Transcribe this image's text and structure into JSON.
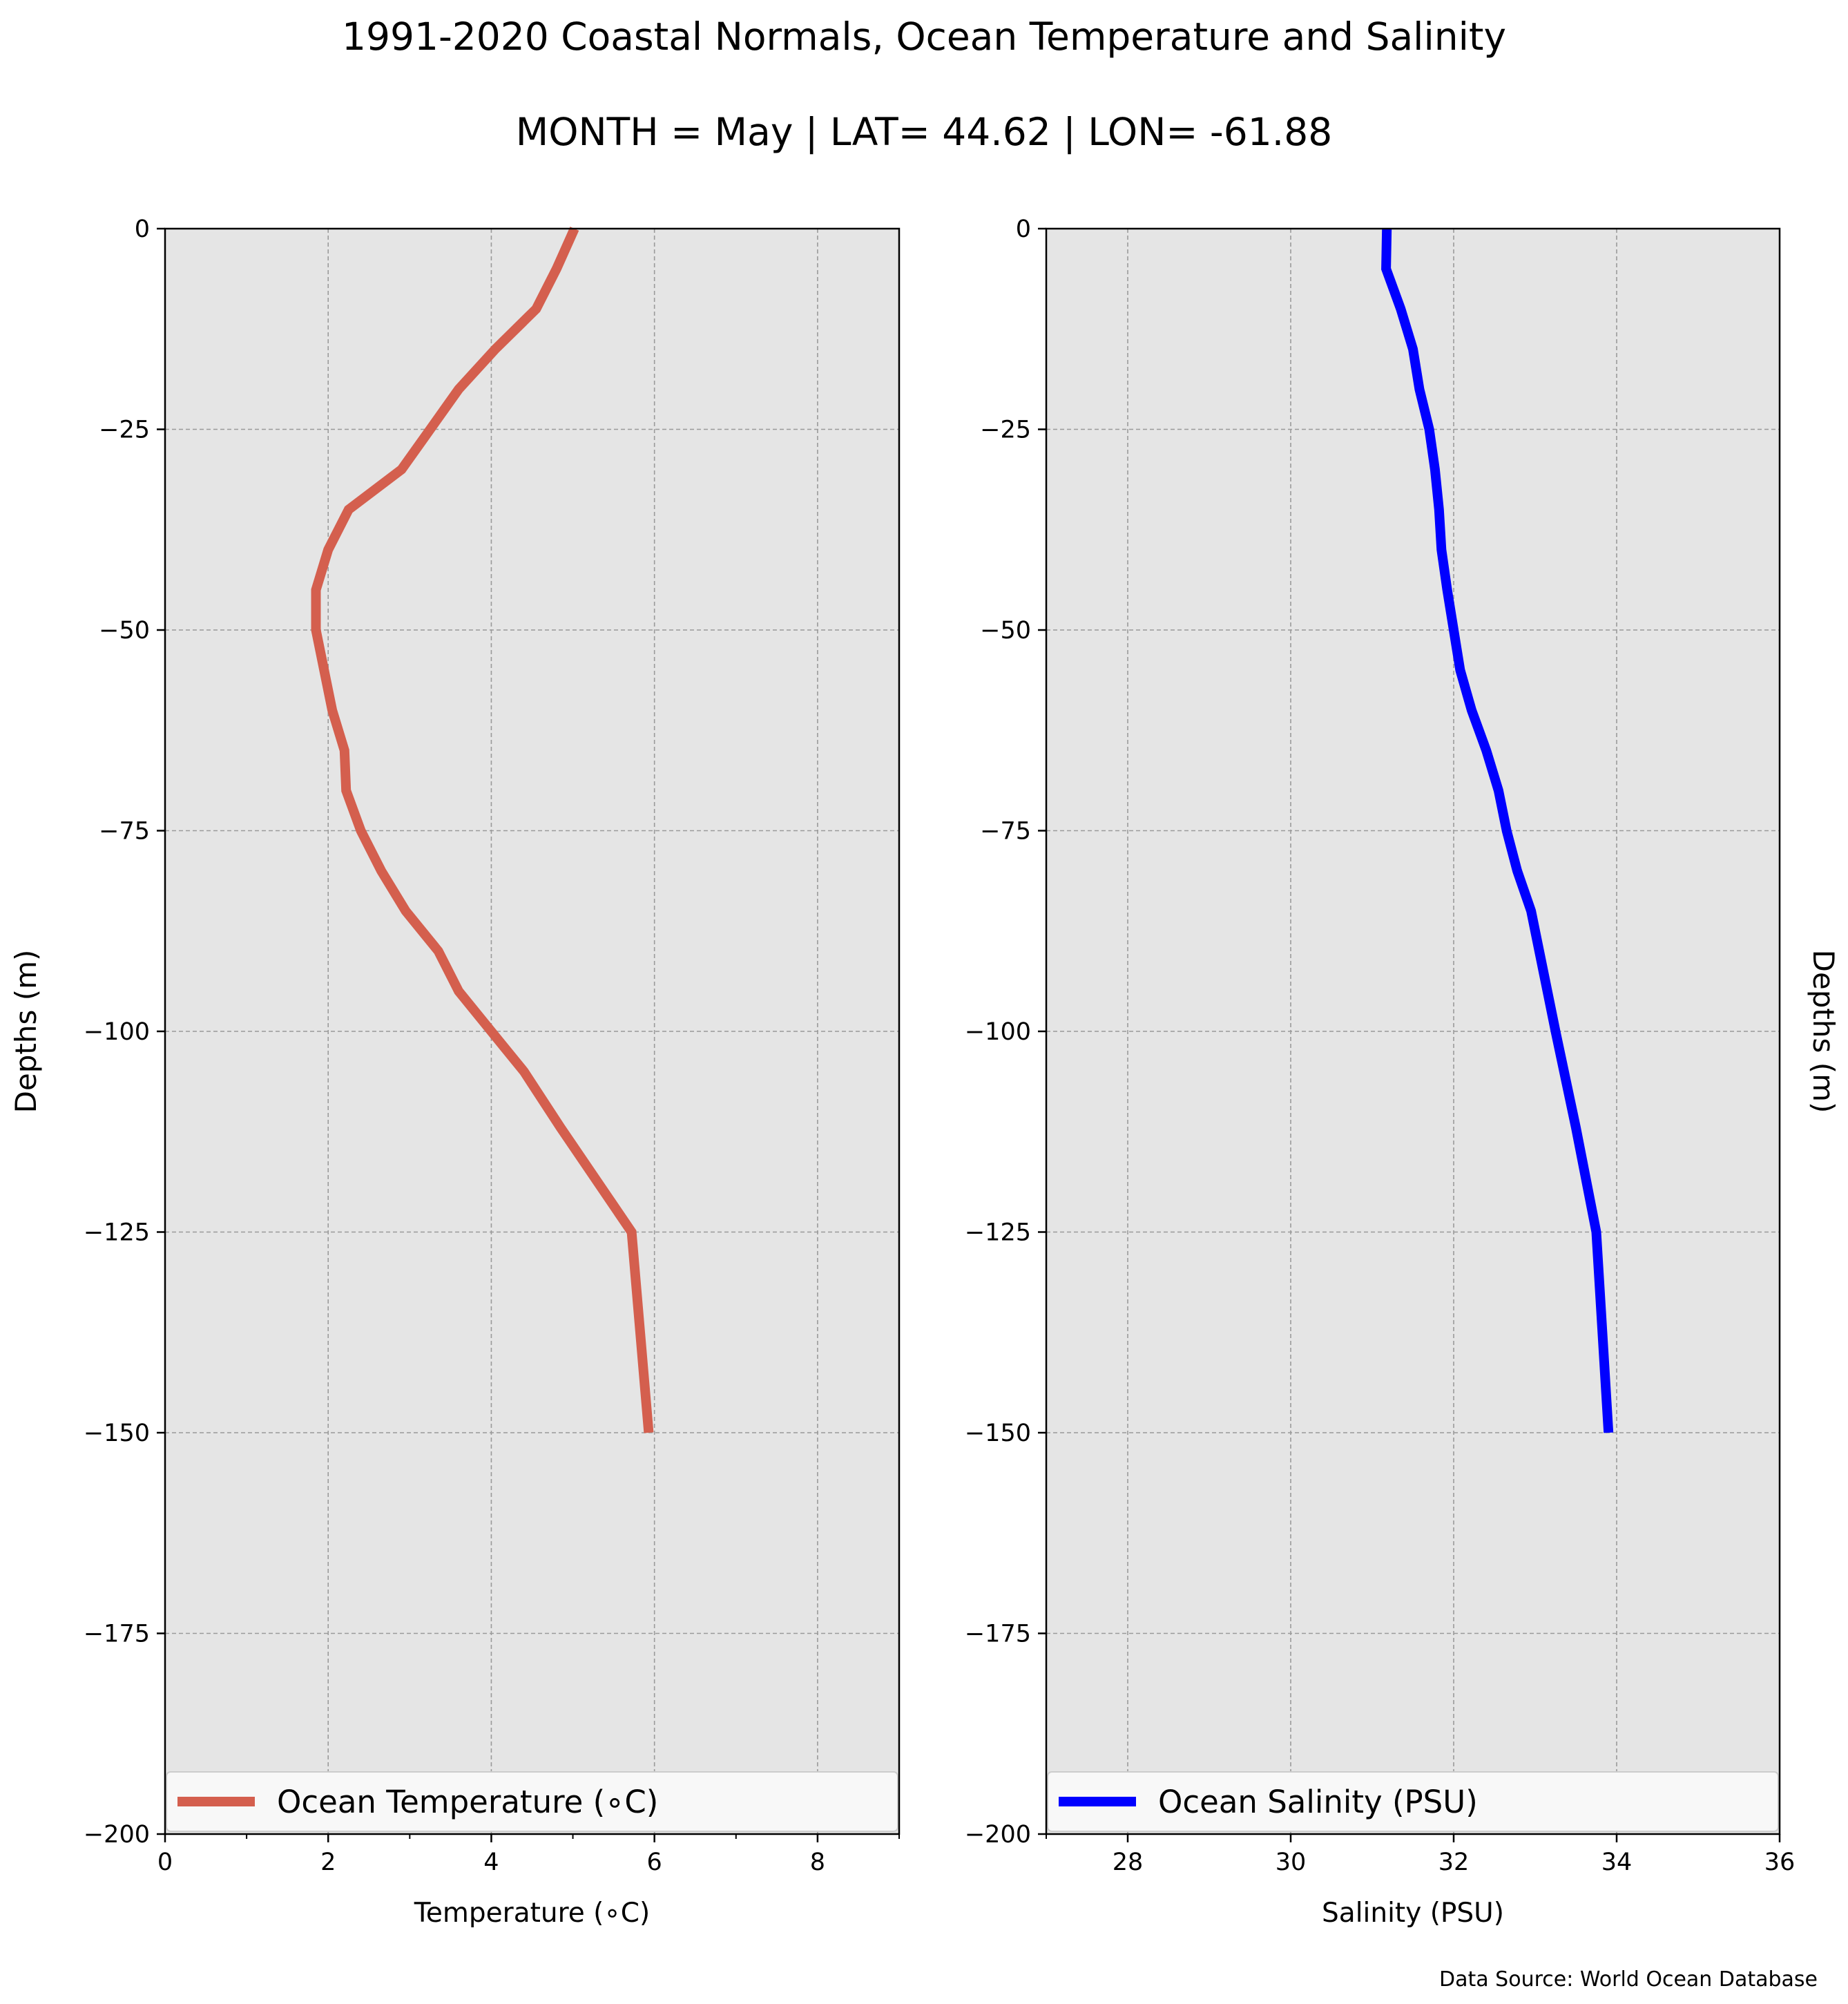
{
  "figure": {
    "title": "1991-2020 Coastal Normals, Ocean Temperature and Salinity",
    "subtitle": "MONTH = May | LAT= 44.62 | LON= -61.88",
    "source_note": "Data Source: World Ocean Database"
  },
  "colors": {
    "panel_background": "#e5e5e5",
    "grid": "#9a9a9a",
    "temperature_line": "#d45f4e",
    "salinity_line": "#0000ff",
    "legend_background": "#f8f8f8"
  },
  "chart_data": [
    {
      "type": "line",
      "xlabel": "Temperature (∘C)",
      "ylabel": "Depths (m)",
      "xlim": [
        0,
        9
      ],
      "ylim": [
        -200,
        0
      ],
      "xticks": [
        0,
        2,
        4,
        6,
        8
      ],
      "yticks": [
        0,
        -25,
        -50,
        -75,
        -100,
        -125,
        -150,
        -175,
        -200
      ],
      "ytick_labels": [
        "0",
        "−25",
        "−50",
        "−75",
        "−100",
        "−125",
        "−150",
        "−175",
        "−200"
      ],
      "grid": true,
      "legend_position": "bottom",
      "series": [
        {
          "name": "Ocean Temperature (∘C)",
          "color": "#d45f4e",
          "points": [
            [
              5.02,
              0
            ],
            [
              4.8,
              -5
            ],
            [
              4.55,
              -10
            ],
            [
              4.05,
              -15
            ],
            [
              3.6,
              -20
            ],
            [
              3.25,
              -25
            ],
            [
              2.9,
              -30
            ],
            [
              2.25,
              -35
            ],
            [
              2.0,
              -40
            ],
            [
              1.85,
              -45
            ],
            [
              1.85,
              -50
            ],
            [
              1.95,
              -55
            ],
            [
              2.05,
              -60
            ],
            [
              2.2,
              -65
            ],
            [
              2.22,
              -70
            ],
            [
              2.4,
              -75
            ],
            [
              2.65,
              -80
            ],
            [
              2.95,
              -85
            ],
            [
              3.35,
              -90
            ],
            [
              3.6,
              -95
            ],
            [
              4.0,
              -100
            ],
            [
              4.4,
              -105
            ],
            [
              4.85,
              -112
            ],
            [
              5.72,
              -125
            ],
            [
              5.93,
              -150
            ]
          ]
        }
      ]
    },
    {
      "type": "line",
      "xlabel": "Salinity (PSU)",
      "ylabel": "Depths (m)",
      "xlim": [
        27,
        36
      ],
      "ylim": [
        -200,
        0
      ],
      "xticks": [
        28,
        30,
        32,
        34,
        36
      ],
      "yticks": [
        0,
        -25,
        -50,
        -75,
        -100,
        -125,
        -150,
        -175,
        -200
      ],
      "ytick_labels": [
        "0",
        "−25",
        "−50",
        "−75",
        "−100",
        "−125",
        "−150",
        "−175",
        "−200"
      ],
      "grid": true,
      "legend_position": "bottom",
      "series": [
        {
          "name": "Ocean Salinity (PSU)",
          "color": "#0000ff",
          "points": [
            [
              31.18,
              0
            ],
            [
              31.17,
              -5
            ],
            [
              31.35,
              -10
            ],
            [
              31.5,
              -15
            ],
            [
              31.58,
              -20
            ],
            [
              31.7,
              -25
            ],
            [
              31.77,
              -30
            ],
            [
              31.82,
              -35
            ],
            [
              31.85,
              -40
            ],
            [
              31.92,
              -45
            ],
            [
              32.0,
              -50
            ],
            [
              32.08,
              -55
            ],
            [
              32.22,
              -60
            ],
            [
              32.4,
              -65
            ],
            [
              32.55,
              -70
            ],
            [
              32.65,
              -75
            ],
            [
              32.78,
              -80
            ],
            [
              32.95,
              -85
            ],
            [
              33.05,
              -90
            ],
            [
              33.15,
              -95
            ],
            [
              33.25,
              -100
            ],
            [
              33.5,
              -112
            ],
            [
              33.75,
              -125
            ],
            [
              33.9,
              -150
            ]
          ]
        }
      ]
    }
  ]
}
